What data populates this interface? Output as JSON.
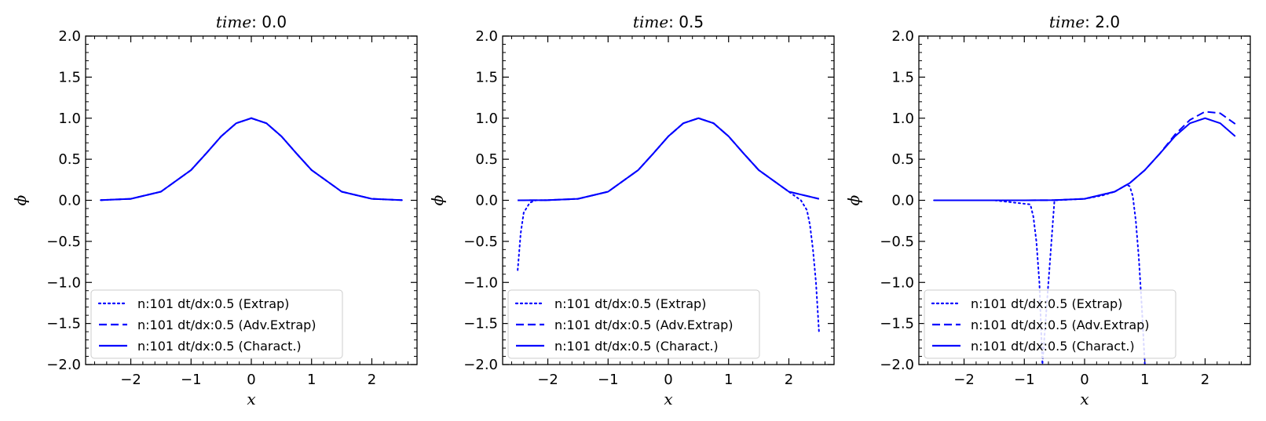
{
  "chart_data": [
    {
      "type": "line",
      "title": "time: 0.0",
      "title_var": "time",
      "title_value": "0.0",
      "xlabel": "x",
      "ylabel": "ϕ",
      "xlim": [
        -2.75,
        2.75
      ],
      "ylim": [
        -2.0,
        2.0
      ],
      "xticks": [
        -2,
        -1,
        0,
        1,
        2
      ],
      "xtick_labels": [
        "−2",
        "−1",
        "0",
        "1",
        "2"
      ],
      "yticks": [
        -2.0,
        -1.5,
        -1.0,
        -0.5,
        0.0,
        0.5,
        1.0,
        1.5,
        2.0
      ],
      "ytick_labels": [
        "−2.0",
        "−1.5",
        "−1.0",
        "−0.5",
        "0.0",
        "0.5",
        "1.0",
        "1.5",
        "2.0"
      ],
      "legend_position": "lower-left",
      "series": [
        {
          "name": "n:101 dt/dx:0.5 (Extrap)",
          "style": "dotted",
          "x": [
            -2.5,
            -2.0,
            -1.5,
            -1.0,
            -0.75,
            -0.5,
            -0.25,
            0.0,
            0.25,
            0.5,
            0.75,
            1.0,
            1.5,
            2.0,
            2.5
          ],
          "y": [
            0.002,
            0.018,
            0.105,
            0.368,
            0.57,
            0.779,
            0.939,
            1.0,
            0.939,
            0.779,
            0.57,
            0.368,
            0.105,
            0.018,
            0.002
          ]
        },
        {
          "name": "n:101 dt/dx:0.5 (Adv.Extrap)",
          "style": "dashed",
          "x": [
            -2.5,
            -2.0,
            -1.5,
            -1.0,
            -0.75,
            -0.5,
            -0.25,
            0.0,
            0.25,
            0.5,
            0.75,
            1.0,
            1.5,
            2.0,
            2.5
          ],
          "y": [
            0.002,
            0.018,
            0.105,
            0.368,
            0.57,
            0.779,
            0.939,
            1.0,
            0.939,
            0.779,
            0.57,
            0.368,
            0.105,
            0.018,
            0.002
          ]
        },
        {
          "name": "n:101 dt/dx:0.5 (Charact.)",
          "style": "solid",
          "x": [
            -2.5,
            -2.0,
            -1.5,
            -1.0,
            -0.75,
            -0.5,
            -0.25,
            0.0,
            0.25,
            0.5,
            0.75,
            1.0,
            1.5,
            2.0,
            2.5
          ],
          "y": [
            0.002,
            0.018,
            0.105,
            0.368,
            0.57,
            0.779,
            0.939,
            1.0,
            0.939,
            0.779,
            0.57,
            0.368,
            0.105,
            0.018,
            0.002
          ]
        }
      ]
    },
    {
      "type": "line",
      "title": "time: 0.5",
      "title_var": "time",
      "title_value": "0.5",
      "xlabel": "x",
      "ylabel": "ϕ",
      "xlim": [
        -2.75,
        2.75
      ],
      "ylim": [
        -2.0,
        2.0
      ],
      "xticks": [
        -2,
        -1,
        0,
        1,
        2
      ],
      "xtick_labels": [
        "−2",
        "−1",
        "0",
        "1",
        "2"
      ],
      "yticks": [
        -2.0,
        -1.5,
        -1.0,
        -0.5,
        0.0,
        0.5,
        1.0,
        1.5,
        2.0
      ],
      "ytick_labels": [
        "−2.0",
        "−1.5",
        "−1.0",
        "−0.5",
        "0.0",
        "0.5",
        "1.0",
        "1.5",
        "2.0"
      ],
      "legend_position": "lower-left",
      "series": [
        {
          "name": "n:101 dt/dx:0.5 (Extrap)",
          "style": "dotted",
          "x": [
            -2.5,
            -2.45,
            -2.4,
            -2.3,
            -2.2,
            -2.0,
            -1.5,
            -1.0,
            -0.5,
            -0.25,
            0.0,
            0.25,
            0.5,
            0.75,
            1.0,
            1.25,
            1.5,
            2.0,
            2.2,
            2.3,
            2.35,
            2.4,
            2.45,
            2.5
          ],
          "y": [
            -0.85,
            -0.4,
            -0.15,
            -0.03,
            0.0,
            0.002,
            0.018,
            0.105,
            0.368,
            0.57,
            0.779,
            0.939,
            1.0,
            0.939,
            0.779,
            0.57,
            0.368,
            0.105,
            0.0,
            -0.12,
            -0.3,
            -0.6,
            -1.0,
            -1.6
          ]
        },
        {
          "name": "n:101 dt/dx:0.5 (Adv.Extrap)",
          "style": "dashed",
          "x": [
            -2.5,
            -2.0,
            -1.5,
            -1.0,
            -0.5,
            -0.25,
            0.0,
            0.25,
            0.5,
            0.75,
            1.0,
            1.25,
            1.5,
            2.0,
            2.5
          ],
          "y": [
            0.0,
            0.002,
            0.018,
            0.105,
            0.368,
            0.57,
            0.779,
            0.939,
            1.0,
            0.939,
            0.779,
            0.57,
            0.368,
            0.105,
            0.018
          ]
        },
        {
          "name": "n:101 dt/dx:0.5 (Charact.)",
          "style": "solid",
          "x": [
            -2.5,
            -2.0,
            -1.5,
            -1.0,
            -0.5,
            -0.25,
            0.0,
            0.25,
            0.5,
            0.75,
            1.0,
            1.25,
            1.5,
            2.0,
            2.5
          ],
          "y": [
            0.0,
            0.002,
            0.018,
            0.105,
            0.368,
            0.57,
            0.779,
            0.939,
            1.0,
            0.939,
            0.779,
            0.57,
            0.368,
            0.105,
            0.018
          ]
        }
      ]
    },
    {
      "type": "line",
      "title": "time: 2.0",
      "title_var": "time",
      "title_value": "2.0",
      "xlabel": "x",
      "ylabel": "ϕ",
      "xlim": [
        -2.75,
        2.75
      ],
      "ylim": [
        -2.0,
        2.0
      ],
      "xticks": [
        -2,
        -1,
        0,
        1,
        2
      ],
      "xtick_labels": [
        "−2",
        "−1",
        "0",
        "1",
        "2"
      ],
      "yticks": [
        -2.0,
        -1.5,
        -1.0,
        -0.5,
        0.0,
        0.5,
        1.0,
        1.5,
        2.0
      ],
      "ytick_labels": [
        "−2.0",
        "−1.5",
        "−1.0",
        "−0.5",
        "0.0",
        "0.5",
        "1.0",
        "1.5",
        "2.0"
      ],
      "legend_position": "lower-left",
      "series": [
        {
          "name": "n:101 dt/dx:0.5 (Extrap)",
          "style": "dotted",
          "x": [
            -2.5,
            -1.5,
            -0.9,
            -0.85,
            -0.8,
            -0.75,
            -0.7,
            -0.5,
            0.0,
            0.3,
            0.5,
            0.7,
            0.75,
            0.8,
            0.85,
            0.9,
            0.95,
            1.0
          ],
          "y": [
            0.0,
            0.0,
            -0.05,
            -0.2,
            -0.5,
            -1.0,
            -2.0,
            0.0,
            0.018,
            0.06,
            0.105,
            0.19,
            0.17,
            0.05,
            -0.25,
            -0.7,
            -1.3,
            -2.0
          ]
        },
        {
          "name": "n:101 dt/dx:0.5 (Adv.Extrap)",
          "style": "dashed",
          "x": [
            -2.5,
            -1.0,
            -0.5,
            0.0,
            0.5,
            0.75,
            1.0,
            1.25,
            1.5,
            1.75,
            2.0,
            2.25,
            2.5
          ],
          "y": [
            0.0,
            0.0,
            0.002,
            0.018,
            0.105,
            0.21,
            0.368,
            0.57,
            0.8,
            0.98,
            1.08,
            1.06,
            0.93
          ]
        },
        {
          "name": "n:101 dt/dx:0.5 (Charact.)",
          "style": "solid",
          "x": [
            -2.5,
            -1.0,
            -0.5,
            0.0,
            0.5,
            0.75,
            1.0,
            1.25,
            1.5,
            1.75,
            2.0,
            2.25,
            2.5
          ],
          "y": [
            0.0,
            0.0,
            0.002,
            0.018,
            0.105,
            0.21,
            0.368,
            0.57,
            0.779,
            0.939,
            1.0,
            0.939,
            0.779
          ]
        }
      ]
    }
  ],
  "colors": {
    "line": "#0000ff",
    "axis": "#000000",
    "legend_border": "#cccccc"
  }
}
